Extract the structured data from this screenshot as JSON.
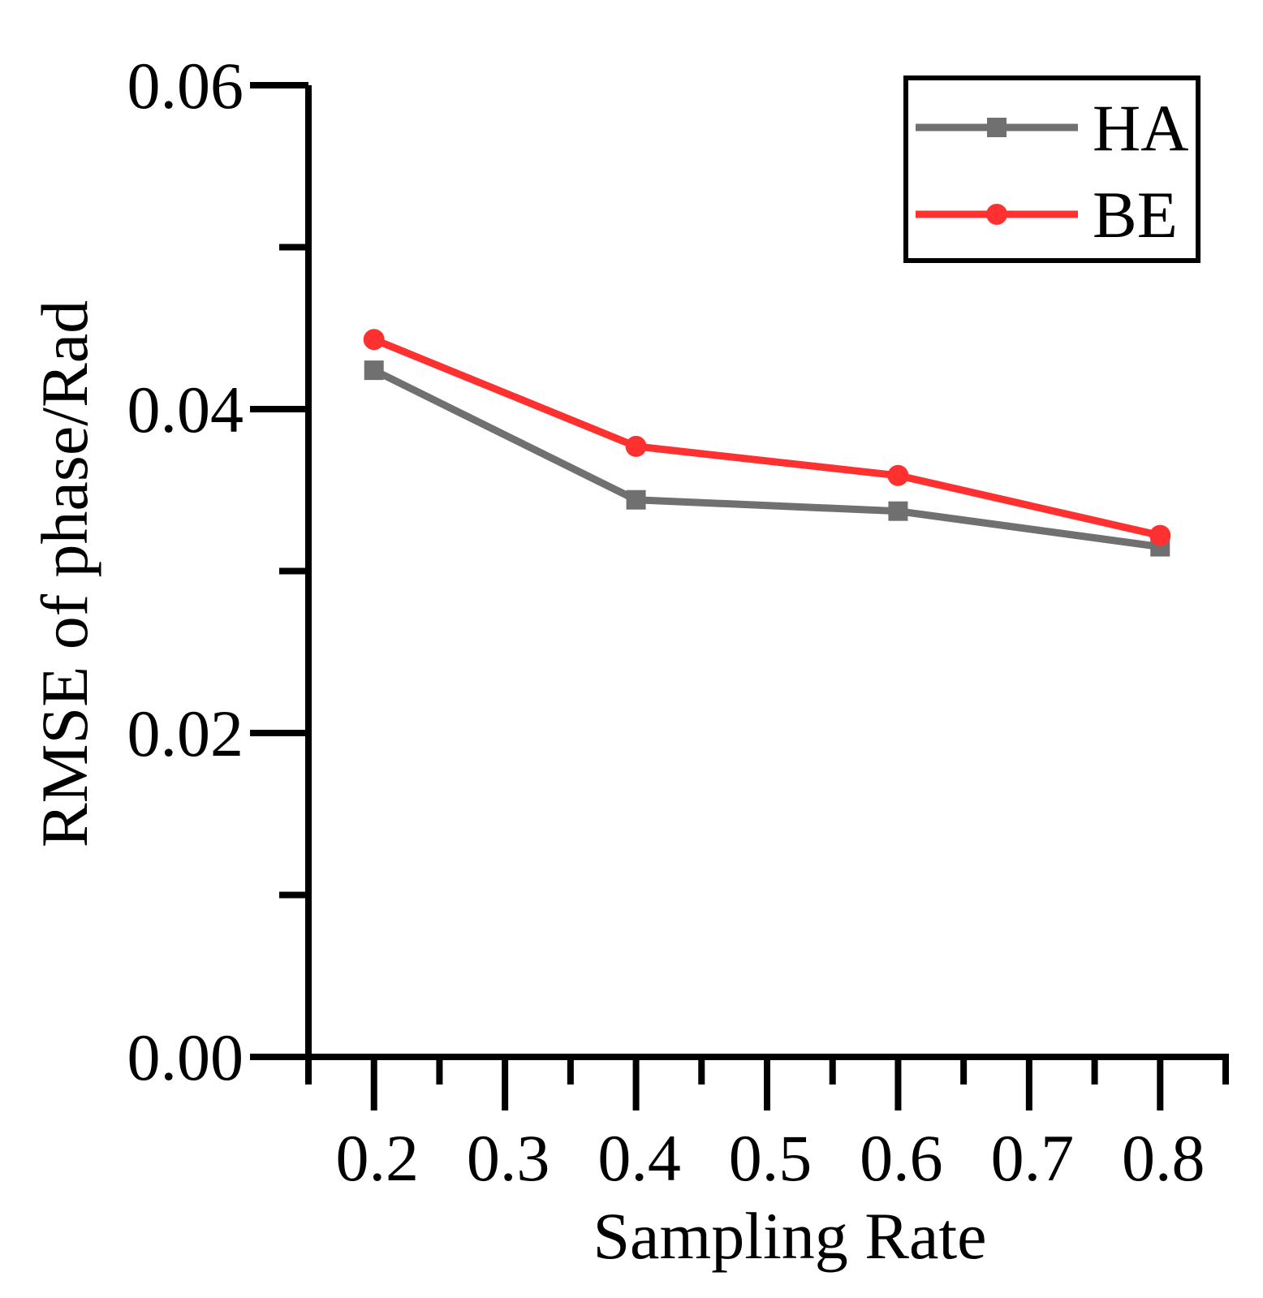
{
  "chart_data": {
    "type": "line",
    "title": "",
    "xlabel": "Sampling Rate",
    "ylabel": "RMSE of phase/Rad",
    "xlim": [
      0.15,
      0.85
    ],
    "ylim": [
      0.0,
      0.06
    ],
    "x_ticks": [
      0.2,
      0.3,
      0.4,
      0.5,
      0.6,
      0.7,
      0.8
    ],
    "x_tick_labels": [
      "0.2",
      "0.3",
      "0.4",
      "0.5",
      "0.6",
      "0.7",
      "0.8"
    ],
    "x_minor_ticks": [
      0.15,
      0.25,
      0.35,
      0.45,
      0.55,
      0.65,
      0.75,
      0.85
    ],
    "y_ticks": [
      0.0,
      0.02,
      0.04,
      0.06
    ],
    "y_tick_labels": [
      "0.00",
      "0.02",
      "0.04",
      "0.06"
    ],
    "y_minor_ticks": [
      0.01,
      0.03,
      0.05
    ],
    "grid": false,
    "legend_position": "top-right",
    "x": [
      0.2,
      0.4,
      0.6,
      0.8
    ],
    "series": [
      {
        "name": "HA",
        "values": [
          0.0424,
          0.0344,
          0.0337,
          0.0315
        ],
        "color": "#707070",
        "marker": "square"
      },
      {
        "name": "BE",
        "values": [
          0.0443,
          0.0377,
          0.0359,
          0.0322
        ],
        "color": "#ff3030",
        "marker": "circle"
      }
    ]
  }
}
